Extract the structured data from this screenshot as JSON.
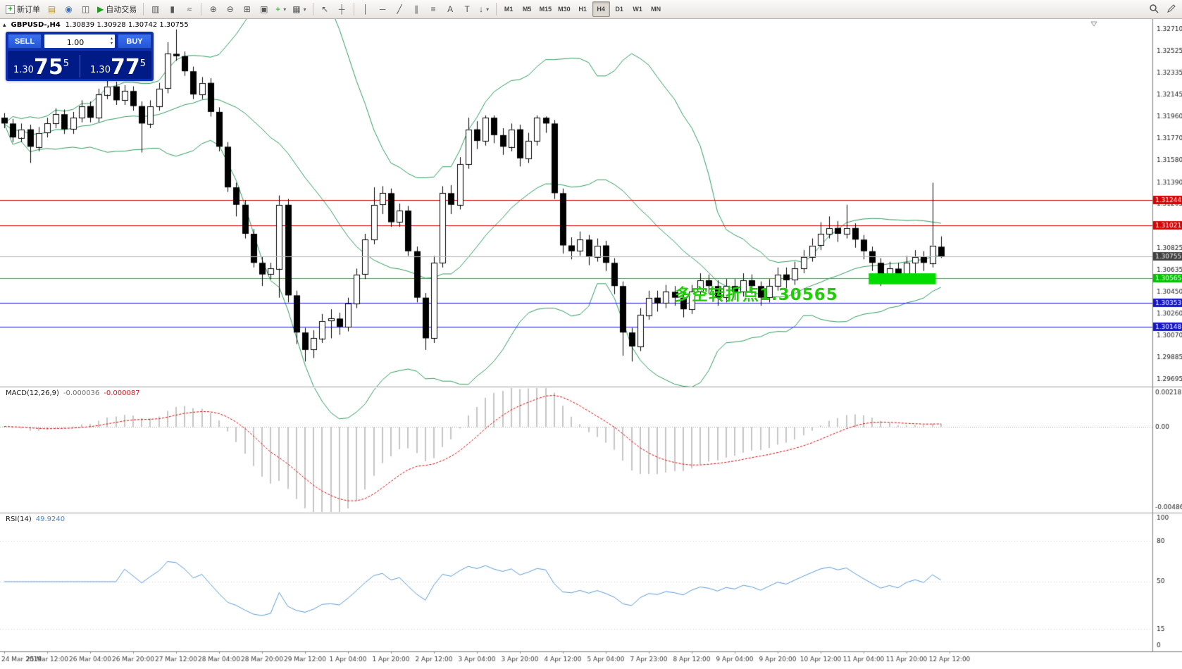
{
  "toolbar": {
    "new_order_label": "新订单",
    "autotrading_label": "自动交易",
    "icons": {
      "plus": "+",
      "dropdown": "▾",
      "market_watch": "▤",
      "navigator": "◉",
      "terminal": "◫",
      "play": "▶",
      "bar_chart": "▥",
      "candle_chart": "▮",
      "line_chart": "≈",
      "zoom_in": "⊕",
      "zoom_out": "⊖",
      "tile_windows": "⊞",
      "arrange_windows": "▣",
      "new_chart": "+",
      "templates": "▦",
      "cursor": "↖",
      "crosshair": "┼",
      "vertical_line": "│",
      "horizontal_line": "─",
      "trendline": "╱",
      "channel": "∥",
      "fibonacci": "≡",
      "text": "A",
      "text_label": "T",
      "arrow_tool": "↓"
    },
    "timeframes": [
      "M1",
      "M5",
      "M15",
      "M30",
      "H1",
      "H4",
      "D1",
      "W1",
      "MN"
    ],
    "active_timeframe": "H4"
  },
  "chart": {
    "collapse_glyph": "▴",
    "title_symbol": "GBPUSD-,H4",
    "title_ohlc": "1.30839 1.30928 1.30742 1.30755",
    "trade_panel": {
      "sell_label": "SELL",
      "buy_label": "BUY",
      "volume": "1.00",
      "up_glyph": "▴",
      "down_glyph": "▾",
      "sell_price_prefix": "1.30",
      "sell_price_big": "75",
      "sell_price_sup": "5",
      "buy_price_prefix": "1.30",
      "buy_price_big": "77",
      "buy_price_sup": "5"
    },
    "annotation": {
      "text": "多空转折点1.30565",
      "color": "#1fce06"
    }
  },
  "chart_data": {
    "type": "candlestick",
    "symbol": "GBPUSD-",
    "period": "H4",
    "ohlc_current": {
      "open": 1.30839,
      "high": 1.30928,
      "low": 1.30742,
      "close": 1.30755
    },
    "price_window": {
      "max": 1.328,
      "min": 1.2964
    },
    "candles": [
      [
        1.3195,
        1.3199,
        1.3186,
        1.319
      ],
      [
        1.319,
        1.3194,
        1.3174,
        1.3178
      ],
      [
        1.3178,
        1.319,
        1.3174,
        1.3185
      ],
      [
        1.3185,
        1.3189,
        1.3156,
        1.317
      ],
      [
        1.317,
        1.3187,
        1.3166,
        1.3182
      ],
      [
        1.3182,
        1.3195,
        1.3178,
        1.319
      ],
      [
        1.319,
        1.3203,
        1.3186,
        1.3198
      ],
      [
        1.3198,
        1.3202,
        1.3181,
        1.3185
      ],
      [
        1.3185,
        1.32,
        1.3181,
        1.3195
      ],
      [
        1.3195,
        1.321,
        1.3191,
        1.3205
      ],
      [
        1.3205,
        1.3209,
        1.3191,
        1.3195
      ],
      [
        1.3195,
        1.322,
        1.3191,
        1.3215
      ],
      [
        1.3215,
        1.3245,
        1.3211,
        1.3222
      ],
      [
        1.3222,
        1.3226,
        1.3206,
        1.321
      ],
      [
        1.321,
        1.3223,
        1.3206,
        1.3218
      ],
      [
        1.3218,
        1.3222,
        1.3201,
        1.3205
      ],
      [
        1.3205,
        1.3209,
        1.3165,
        1.319
      ],
      [
        1.319,
        1.321,
        1.3186,
        1.3205
      ],
      [
        1.3205,
        1.3225,
        1.3201,
        1.322
      ],
      [
        1.322,
        1.326,
        1.3216,
        1.325
      ],
      [
        1.325,
        1.3271,
        1.3244,
        1.3248
      ],
      [
        1.3248,
        1.3252,
        1.3231,
        1.3235
      ],
      [
        1.3235,
        1.3239,
        1.3211,
        1.3215
      ],
      [
        1.3215,
        1.323,
        1.3211,
        1.3225
      ],
      [
        1.3225,
        1.3229,
        1.3196,
        1.32
      ],
      [
        1.32,
        1.3204,
        1.3166,
        1.317
      ],
      [
        1.317,
        1.3174,
        1.3131,
        1.3135
      ],
      [
        1.3135,
        1.3139,
        1.311,
        1.312
      ],
      [
        1.312,
        1.3124,
        1.3091,
        1.3095
      ],
      [
        1.3095,
        1.3099,
        1.3066,
        1.307
      ],
      [
        1.307,
        1.3075,
        1.305,
        1.306
      ],
      [
        1.306,
        1.307,
        1.3056,
        1.3065
      ],
      [
        1.3065,
        1.3128,
        1.304,
        1.312
      ],
      [
        1.312,
        1.3125,
        1.3036,
        1.3042
      ],
      [
        1.3042,
        1.3046,
        1.3,
        1.301
      ],
      [
        1.301,
        1.3014,
        1.2985,
        1.2995
      ],
      [
        1.2995,
        1.3012,
        1.2988,
        1.3005
      ],
      [
        1.3005,
        1.3026,
        1.3001,
        1.302
      ],
      [
        1.302,
        1.303,
        1.3005,
        1.3022
      ],
      [
        1.3022,
        1.3027,
        1.3008,
        1.3015
      ],
      [
        1.3015,
        1.304,
        1.3011,
        1.3035
      ],
      [
        1.3035,
        1.3065,
        1.3031,
        1.306
      ],
      [
        1.306,
        1.3095,
        1.3056,
        1.309
      ],
      [
        1.309,
        1.3135,
        1.3086,
        1.312
      ],
      [
        1.312,
        1.3136,
        1.3112,
        1.313
      ],
      [
        1.313,
        1.3134,
        1.3101,
        1.3105
      ],
      [
        1.3105,
        1.3121,
        1.3101,
        1.3115
      ],
      [
        1.3115,
        1.3119,
        1.3076,
        1.308
      ],
      [
        1.308,
        1.3084,
        1.3036,
        1.304
      ],
      [
        1.304,
        1.3044,
        1.2995,
        1.3005
      ],
      [
        1.3005,
        1.3076,
        1.3001,
        1.307
      ],
      [
        1.307,
        1.3136,
        1.3066,
        1.313
      ],
      [
        1.313,
        1.3137,
        1.3112,
        1.312
      ],
      [
        1.312,
        1.3161,
        1.3116,
        1.3155
      ],
      [
        1.3155,
        1.3195,
        1.3151,
        1.3185
      ],
      [
        1.3185,
        1.3192,
        1.3168,
        1.3175
      ],
      [
        1.3175,
        1.3197,
        1.3171,
        1.3195
      ],
      [
        1.3195,
        1.3197,
        1.3173,
        1.318
      ],
      [
        1.318,
        1.3186,
        1.3163,
        1.317
      ],
      [
        1.317,
        1.319,
        1.3166,
        1.3185
      ],
      [
        1.3185,
        1.3189,
        1.3153,
        1.316
      ],
      [
        1.316,
        1.3182,
        1.3156,
        1.3175
      ],
      [
        1.3175,
        1.3197,
        1.3171,
        1.3195
      ],
      [
        1.3195,
        1.3196,
        1.3182,
        1.319
      ],
      [
        1.319,
        1.3193,
        1.3125,
        1.313
      ],
      [
        1.313,
        1.3134,
        1.3078,
        1.3085
      ],
      [
        1.3085,
        1.3092,
        1.3073,
        1.308
      ],
      [
        1.308,
        1.3097,
        1.3076,
        1.309
      ],
      [
        1.309,
        1.3094,
        1.3068,
        1.3075
      ],
      [
        1.3075,
        1.3091,
        1.3071,
        1.3085
      ],
      [
        1.3085,
        1.3089,
        1.3063,
        1.307
      ],
      [
        1.307,
        1.3074,
        1.3043,
        1.305
      ],
      [
        1.305,
        1.3054,
        1.299,
        1.301
      ],
      [
        1.301,
        1.3014,
        1.2985,
        1.2998
      ],
      [
        1.2998,
        1.3031,
        1.2994,
        1.3025
      ],
      [
        1.3025,
        1.3046,
        1.3021,
        1.304
      ],
      [
        1.304,
        1.3046,
        1.3028,
        1.3035
      ],
      [
        1.3035,
        1.3051,
        1.3031,
        1.3045
      ],
      [
        1.3045,
        1.305,
        1.3033,
        1.304
      ],
      [
        1.304,
        1.3045,
        1.3023,
        1.303
      ],
      [
        1.303,
        1.3051,
        1.3026,
        1.3045
      ],
      [
        1.3045,
        1.3061,
        1.3041,
        1.3055
      ],
      [
        1.3055,
        1.306,
        1.3043,
        1.305
      ],
      [
        1.305,
        1.3055,
        1.3033,
        1.304
      ],
      [
        1.304,
        1.3056,
        1.3036,
        1.305
      ],
      [
        1.305,
        1.3056,
        1.3038,
        1.3045
      ],
      [
        1.3045,
        1.3061,
        1.3041,
        1.3055
      ],
      [
        1.3055,
        1.306,
        1.3043,
        1.305
      ],
      [
        1.305,
        1.3054,
        1.3033,
        1.304
      ],
      [
        1.304,
        1.3056,
        1.3036,
        1.305
      ],
      [
        1.305,
        1.3066,
        1.3046,
        1.306
      ],
      [
        1.306,
        1.3066,
        1.3048,
        1.3055
      ],
      [
        1.3055,
        1.3071,
        1.3051,
        1.3065
      ],
      [
        1.3065,
        1.3081,
        1.3061,
        1.3075
      ],
      [
        1.3075,
        1.3091,
        1.3071,
        1.3085
      ],
      [
        1.3085,
        1.3105,
        1.3081,
        1.3095
      ],
      [
        1.3095,
        1.311,
        1.3091,
        1.31
      ],
      [
        1.31,
        1.3106,
        1.3088,
        1.3095
      ],
      [
        1.3095,
        1.312,
        1.3091,
        1.31
      ],
      [
        1.31,
        1.3104,
        1.3083,
        1.309
      ],
      [
        1.309,
        1.3094,
        1.3073,
        1.308
      ],
      [
        1.308,
        1.3084,
        1.3063,
        1.307
      ],
      [
        1.307,
        1.3074,
        1.305,
        1.306
      ],
      [
        1.306,
        1.3071,
        1.3053,
        1.3065
      ],
      [
        1.3065,
        1.307,
        1.3052,
        1.306
      ],
      [
        1.306,
        1.3076,
        1.3056,
        1.307
      ],
      [
        1.307,
        1.3081,
        1.3061,
        1.3075
      ],
      [
        1.3075,
        1.308,
        1.3063,
        1.307
      ],
      [
        1.307,
        1.3139,
        1.3066,
        1.3085
      ],
      [
        1.30839,
        1.30928,
        1.30742,
        1.30755
      ]
    ],
    "x_labels": [
      "24 Mar 2019",
      "25 Mar 12:00",
      "26 Mar 04:00",
      "26 Mar 20:00",
      "27 Mar 12:00",
      "28 Mar 04:00",
      "28 Mar 20:00",
      "29 Mar 12:00",
      "1 Apr 04:00",
      "1 Apr 20:00",
      "2 Apr 12:00",
      "3 Apr 04:00",
      "3 Apr 20:00",
      "4 Apr 12:00",
      "5 Apr 04:00",
      "7 Apr 23:00",
      "8 Apr 12:00",
      "9 Apr 04:00",
      "9 Apr 20:00",
      "10 Apr 12:00",
      "11 Apr 04:00",
      "11 Apr 20:00",
      "12 Apr 12:00"
    ],
    "y_ticks": [
      "1.32710",
      "1.32525",
      "1.32335",
      "1.32145",
      "1.31960",
      "1.31770",
      "1.31580",
      "1.31390",
      "1.31205",
      "1.30825",
      "1.30635",
      "1.30450",
      "1.30260",
      "1.30070",
      "1.29885",
      "1.29695"
    ],
    "bollinger": {
      "period": 20,
      "deviation": 2,
      "color": "#2e9b5e"
    },
    "hlines": [
      {
        "price": 1.31244,
        "label": "1.31244",
        "color": "#dd0000"
      },
      {
        "price": 1.31021,
        "label": "1.31021",
        "color": "#dd0000"
      },
      {
        "price": 1.30565,
        "label": "1.30565",
        "color": "#00c300"
      },
      {
        "price": 1.30353,
        "label": "1.30353",
        "color": "#1515cf"
      },
      {
        "price": 1.30148,
        "label": "1.30148",
        "color": "#1515cf"
      }
    ],
    "current_price": {
      "value": 1.30755,
      "label": "1.30755",
      "tag_color": "#3f3f3f"
    },
    "green_zone": {
      "start_index": 101,
      "end_index": 108,
      "price_top": 1.3061,
      "price_bottom": 1.30515,
      "color": "#00dc00"
    },
    "indicators": {
      "macd": {
        "label": "MACD(12,26,9)",
        "value_main": "-0.000036",
        "value_signal": "-0.000087",
        "scale_labels": [
          "0.002183",
          "0.00",
          "-0.004861"
        ],
        "scale_max": 0.002183,
        "scale_min": -0.004861,
        "histogram_color": "#c6c6c6",
        "signal_color": "#e00000"
      },
      "rsi": {
        "label": "RSI(14)",
        "value": "49.9240",
        "scale_labels": [
          "100",
          "80",
          "50",
          "15",
          "0"
        ],
        "levels": [
          80,
          50,
          15
        ],
        "line_color": "#5b9bd5"
      }
    }
  }
}
